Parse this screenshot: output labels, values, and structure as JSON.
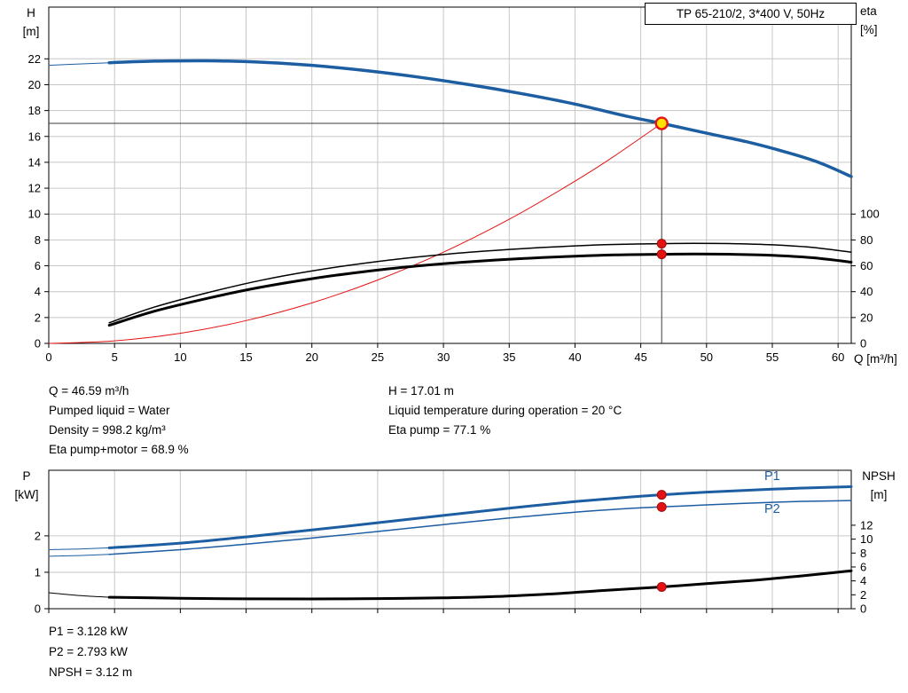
{
  "title_box": "TP 65-210/2, 3*400 V, 50Hz",
  "colors": {
    "blue": "#1d5da2",
    "black": "#000000",
    "red": "#e41313",
    "duty_fill": "#ffe000",
    "grid": "#c6c6c6",
    "text": "#000000"
  },
  "axis_titles": {
    "top_left_line1": "H",
    "top_left_line2": "[m]",
    "top_right_line1": "eta",
    "top_right_line2": "[%]",
    "x_axis": "Q [m³/h]",
    "bottom_left_line1": "P",
    "bottom_left_line2": "[kW]",
    "bottom_right_line1": "NPSH",
    "bottom_right_line2": "[m]"
  },
  "series_labels": {
    "p1": "P1",
    "p2": "P2"
  },
  "annotations": {
    "info_left": [
      "Q = 46.59 m³/h",
      "Pumped liquid = Water",
      "Density = 998.2 kg/m³",
      "Eta pump+motor = 68.9 %"
    ],
    "info_right": [
      "H = 17.01 m",
      "Liquid temperature during operation = 20 °C",
      "Eta pump = 77.1 %"
    ],
    "bottom": [
      "P1 = 3.128 kW",
      "P2 = 2.793 kW",
      "NPSH = 3.12 m"
    ]
  },
  "chart_data": [
    {
      "type": "line",
      "title": "TP 65-210/2, 3*400 V, 50Hz",
      "x_axis": {
        "label": "Q [m³/h]",
        "min": 0,
        "max": 61,
        "ticks": [
          0,
          5,
          10,
          15,
          20,
          25,
          30,
          35,
          40,
          45,
          50,
          55,
          60
        ]
      },
      "left_axis": {
        "label": "H [m]",
        "min": 0,
        "max": 26,
        "ticks": [
          0,
          2,
          4,
          6,
          8,
          10,
          12,
          14,
          16,
          18,
          20,
          22
        ]
      },
      "right_axis": {
        "label": "eta [%]",
        "min": 0,
        "max": 260,
        "ticks": [
          0,
          20,
          40,
          60,
          80,
          100
        ]
      },
      "grid": true,
      "legend": "none",
      "guide": {
        "q": 46.59,
        "value": 17.01
      },
      "series": [
        {
          "name": "head-curve-lead",
          "axis": "left",
          "color": "#1d5da2",
          "width": 1,
          "points": [
            [
              0,
              21.5
            ],
            [
              2.3,
              21.6
            ],
            [
              4.6,
              21.7
            ]
          ]
        },
        {
          "name": "head-curve",
          "axis": "left",
          "color": "#1d5da2",
          "width": 3.5,
          "points": [
            [
              4.6,
              21.7
            ],
            [
              8,
              21.82
            ],
            [
              12,
              21.85
            ],
            [
              16,
              21.75
            ],
            [
              20,
              21.5
            ],
            [
              24,
              21.1
            ],
            [
              28,
              20.6
            ],
            [
              32,
              20.0
            ],
            [
              36,
              19.3
            ],
            [
              40,
              18.5
            ],
            [
              44,
              17.55
            ],
            [
              46.59,
              17.01
            ],
            [
              50,
              16.25
            ],
            [
              53,
              15.6
            ],
            [
              56,
              14.8
            ],
            [
              58.5,
              14.0
            ],
            [
              61,
              12.9
            ]
          ]
        },
        {
          "name": "affinity-parabola",
          "axis": "left",
          "color": "#e41313",
          "width": 1,
          "points": [
            [
              0,
              0
            ],
            [
              5,
              0.2
            ],
            [
              10,
              0.78
            ],
            [
              15,
              1.76
            ],
            [
              20,
              3.13
            ],
            [
              25,
              4.9
            ],
            [
              30,
              7.05
            ],
            [
              35,
              9.6
            ],
            [
              40,
              12.54
            ],
            [
              43,
              14.49
            ],
            [
              46.59,
              17.01
            ]
          ]
        },
        {
          "name": "eta-pump-curve",
          "axis": "right",
          "color": "#000000",
          "width": 1.5,
          "points": [
            [
              4.6,
              16
            ],
            [
              8,
              28
            ],
            [
              12,
              39
            ],
            [
              16,
              48.5
            ],
            [
              20,
              56
            ],
            [
              24,
              62
            ],
            [
              28,
              66.8
            ],
            [
              32,
              70.5
            ],
            [
              36,
              73.3
            ],
            [
              40,
              75.4
            ],
            [
              43,
              76.5
            ],
            [
              46.59,
              77.1
            ],
            [
              49,
              77.3
            ],
            [
              52,
              77.1
            ],
            [
              55,
              76.2
            ],
            [
              58,
              74.3
            ],
            [
              61,
              70.5
            ]
          ]
        },
        {
          "name": "eta-pump-motor-curve",
          "axis": "right",
          "color": "#000000",
          "width": 3,
          "points": [
            [
              4.6,
              14
            ],
            [
              8,
              24.8
            ],
            [
              12,
              34.7
            ],
            [
              16,
              43.2
            ],
            [
              20,
              50
            ],
            [
              24,
              55.5
            ],
            [
              28,
              59.8
            ],
            [
              32,
              63.1
            ],
            [
              36,
              65.6
            ],
            [
              40,
              67.4
            ],
            [
              43,
              68.4
            ],
            [
              46.59,
              68.9
            ],
            [
              49,
              69.1
            ],
            [
              52,
              68.9
            ],
            [
              55,
              68.1
            ],
            [
              58,
              66.3
            ],
            [
              61,
              62.8
            ]
          ]
        }
      ],
      "markers": [
        {
          "style": "dot",
          "axis": "right",
          "q": 46.59,
          "value": 77.1
        },
        {
          "style": "dot",
          "axis": "right",
          "q": 46.59,
          "value": 68.9
        },
        {
          "style": "duty",
          "axis": "left",
          "q": 46.59,
          "value": 17.01
        }
      ]
    },
    {
      "type": "line",
      "x_axis": {
        "label": "",
        "min": 0,
        "max": 61,
        "ticks": [
          0,
          5,
          10,
          15,
          20,
          25,
          30,
          35,
          40,
          45,
          50,
          55,
          60
        ]
      },
      "left_axis": {
        "label": "P [kW]",
        "min": 0,
        "max": 3.8,
        "ticks": [
          0,
          1,
          2
        ]
      },
      "right_axis": {
        "label": "NPSH [m]",
        "min": 0,
        "max": 19.9,
        "ticks": [
          0,
          2,
          4,
          6,
          8,
          10,
          12
        ]
      },
      "grid": true,
      "legend": "inline",
      "series": [
        {
          "name": "p1-curve-lead",
          "axis": "left",
          "color": "#1d5da2",
          "width": 1,
          "points": [
            [
              0,
              1.62
            ],
            [
              2.3,
              1.64
            ],
            [
              4.6,
              1.67
            ]
          ]
        },
        {
          "name": "p1-curve",
          "axis": "left",
          "color": "#1d5da2",
          "width": 3,
          "points": [
            [
              4.6,
              1.67
            ],
            [
              10,
              1.8
            ],
            [
              15,
              1.97
            ],
            [
              20,
              2.16
            ],
            [
              25,
              2.36
            ],
            [
              30,
              2.56
            ],
            [
              35,
              2.76
            ],
            [
              40,
              2.94
            ],
            [
              44,
              3.06
            ],
            [
              46.59,
              3.128
            ],
            [
              50,
              3.2
            ],
            [
              55,
              3.28
            ],
            [
              58,
              3.32
            ],
            [
              61,
              3.35
            ]
          ]
        },
        {
          "name": "p2-curve-lead",
          "axis": "left",
          "color": "#1d5da2",
          "width": 1,
          "points": [
            [
              0,
              1.44
            ],
            [
              2.3,
              1.46
            ],
            [
              4.6,
              1.49
            ]
          ]
        },
        {
          "name": "p2-curve",
          "axis": "left",
          "color": "#1d5da2",
          "width": 1.5,
          "points": [
            [
              4.6,
              1.49
            ],
            [
              10,
              1.62
            ],
            [
              15,
              1.77
            ],
            [
              20,
              1.94
            ],
            [
              25,
              2.12
            ],
            [
              30,
              2.31
            ],
            [
              35,
              2.49
            ],
            [
              40,
              2.65
            ],
            [
              44,
              2.75
            ],
            [
              46.59,
              2.793
            ],
            [
              50,
              2.85
            ],
            [
              55,
              2.92
            ],
            [
              58,
              2.95
            ],
            [
              61,
              2.97
            ]
          ]
        },
        {
          "name": "npsh-curve-lead",
          "axis": "right",
          "color": "#000000",
          "width": 1,
          "points": [
            [
              0,
              2.3
            ],
            [
              2.3,
              1.9
            ],
            [
              4.6,
              1.65
            ]
          ]
        },
        {
          "name": "npsh-curve",
          "axis": "right",
          "color": "#000000",
          "width": 3,
          "points": [
            [
              4.6,
              1.65
            ],
            [
              10,
              1.5
            ],
            [
              15,
              1.42
            ],
            [
              20,
              1.4
            ],
            [
              25,
              1.45
            ],
            [
              30,
              1.55
            ],
            [
              34,
              1.75
            ],
            [
              38,
              2.1
            ],
            [
              42,
              2.6
            ],
            [
              46.59,
              3.12
            ],
            [
              50,
              3.6
            ],
            [
              53,
              4.0
            ],
            [
              56,
              4.5
            ],
            [
              59,
              5.05
            ],
            [
              61,
              5.45
            ]
          ]
        }
      ],
      "markers": [
        {
          "style": "dot",
          "axis": "left",
          "q": 46.59,
          "value": 3.128
        },
        {
          "style": "dot",
          "axis": "left",
          "q": 46.59,
          "value": 2.793
        },
        {
          "style": "dot",
          "axis": "right",
          "q": 46.59,
          "value": 3.12
        }
      ]
    }
  ]
}
